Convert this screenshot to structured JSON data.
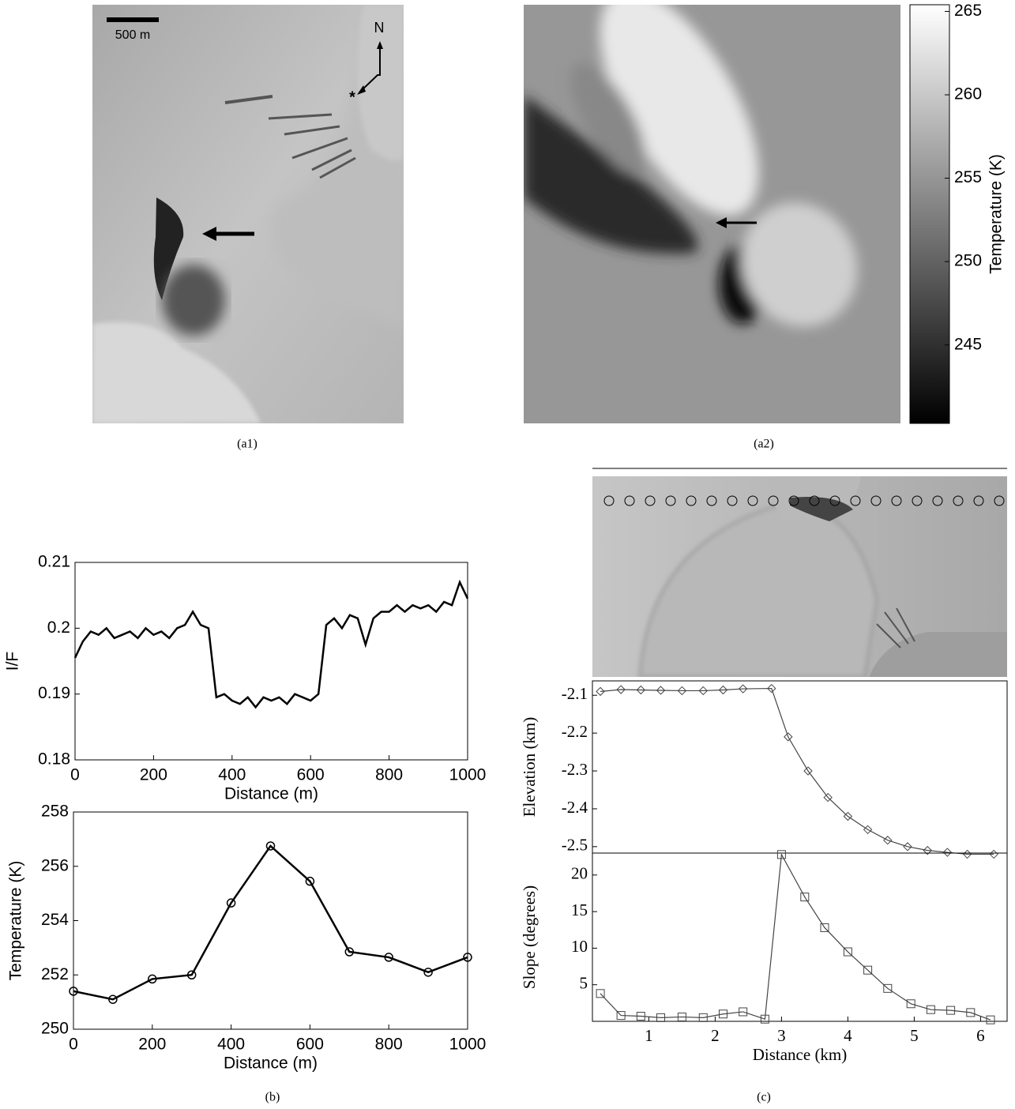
{
  "figure": {
    "a1": {
      "scale_bar": "500 m",
      "north": "N",
      "marker": "*",
      "caption": "(a1)"
    },
    "a2": {
      "caption": "(a2)"
    },
    "b": {
      "caption": "(b)"
    },
    "c": {
      "caption": "(c)"
    }
  },
  "chart_data": [
    {
      "type": "colorbar",
      "ylabel": "Temperature (K)",
      "ylim": [
        240.3,
        265.4
      ],
      "yticks": [
        245,
        250,
        255,
        260,
        265
      ]
    },
    {
      "type": "line",
      "ylabel": "I/F",
      "xlabel": "Distance (m)",
      "color": "#000000",
      "x": [
        0,
        20,
        40,
        60,
        80,
        100,
        120,
        140,
        160,
        180,
        200,
        220,
        240,
        260,
        280,
        300,
        320,
        340,
        360,
        380,
        400,
        420,
        440,
        460,
        480,
        500,
        520,
        540,
        560,
        580,
        600,
        620,
        640,
        660,
        680,
        700,
        720,
        740,
        760,
        780,
        800,
        820,
        840,
        860,
        880,
        900,
        920,
        940,
        960,
        980,
        1000
      ],
      "values": [
        0.1955,
        0.198,
        0.1995,
        0.199,
        0.2,
        0.1985,
        0.199,
        0.1995,
        0.1985,
        0.2,
        0.199,
        0.1995,
        0.1985,
        0.2,
        0.2005,
        0.2025,
        0.2005,
        0.2,
        0.1895,
        0.19,
        0.189,
        0.1885,
        0.1895,
        0.188,
        0.1895,
        0.189,
        0.1895,
        0.1885,
        0.19,
        0.1895,
        0.189,
        0.19,
        0.2005,
        0.2015,
        0.2,
        0.202,
        0.2015,
        0.1975,
        0.2015,
        0.2025,
        0.2025,
        0.2035,
        0.2025,
        0.2035,
        0.203,
        0.2035,
        0.2025,
        0.204,
        0.2035,
        0.207,
        0.2045
      ],
      "xlim": [
        0,
        1000
      ],
      "xticks": [
        0,
        200,
        400,
        600,
        800,
        1000
      ],
      "ylim": [
        0.18,
        0.21
      ],
      "yticks": [
        0.18,
        0.19,
        0.2,
        0.21
      ]
    },
    {
      "type": "line",
      "ylabel": "Temperature (K)",
      "xlabel": "Distance (m)",
      "color": "#000000",
      "marker": "circle",
      "x": [
        0,
        100,
        200,
        300,
        400,
        500,
        600,
        700,
        800,
        900,
        1000
      ],
      "values": [
        251.4,
        251.1,
        251.85,
        252.0,
        254.65,
        256.75,
        255.45,
        252.85,
        252.65,
        252.1,
        252.65
      ],
      "xlim": [
        0,
        1000
      ],
      "xticks": [
        0,
        200,
        400,
        600,
        800,
        1000
      ],
      "ylim": [
        250,
        258
      ],
      "yticks": [
        250,
        252,
        254,
        256,
        258
      ]
    },
    {
      "type": "line",
      "ylabel": "Elevation (km)",
      "color": "#444444",
      "marker": "diamond",
      "x": [
        0.27,
        0.58,
        0.88,
        1.18,
        1.5,
        1.82,
        2.12,
        2.42,
        2.85,
        3.1,
        3.4,
        3.7,
        4.0,
        4.3,
        4.6,
        4.9,
        5.2,
        5.5,
        5.8,
        6.2
      ],
      "values": [
        -2.09,
        -2.085,
        -2.086,
        -2.087,
        -2.088,
        -2.088,
        -2.086,
        -2.083,
        -2.082,
        -2.21,
        -2.3,
        -2.37,
        -2.42,
        -2.455,
        -2.483,
        -2.5,
        -2.51,
        -2.515,
        -2.52,
        -2.52
      ],
      "xlim": [
        0.15,
        6.4
      ],
      "ylim": [
        -2.517,
        -2.062
      ],
      "yticks": [
        -2.1,
        -2.2,
        -2.3,
        -2.4,
        -2.5
      ]
    },
    {
      "type": "line",
      "ylabel": "Slope (degrees)",
      "xlabel": "Distance (km)",
      "color": "#444444",
      "marker": "square",
      "x": [
        0.27,
        0.58,
        0.88,
        1.18,
        1.5,
        1.82,
        2.12,
        2.42,
        2.75,
        3.0,
        3.35,
        3.65,
        4.0,
        4.3,
        4.6,
        4.95,
        5.25,
        5.55,
        5.85,
        6.15
      ],
      "values": [
        3.8,
        0.8,
        0.7,
        0.5,
        0.6,
        0.5,
        1.0,
        1.3,
        0.3,
        22.8,
        17,
        12.8,
        9.5,
        7,
        4.5,
        2.4,
        1.6,
        1.5,
        1.2,
        0.2
      ],
      "xlim": [
        0.15,
        6.4
      ],
      "xticks": [
        1,
        2,
        3,
        4,
        5,
        6
      ],
      "ylim": [
        0,
        23
      ],
      "yticks": [
        5,
        10,
        15,
        20
      ]
    }
  ]
}
